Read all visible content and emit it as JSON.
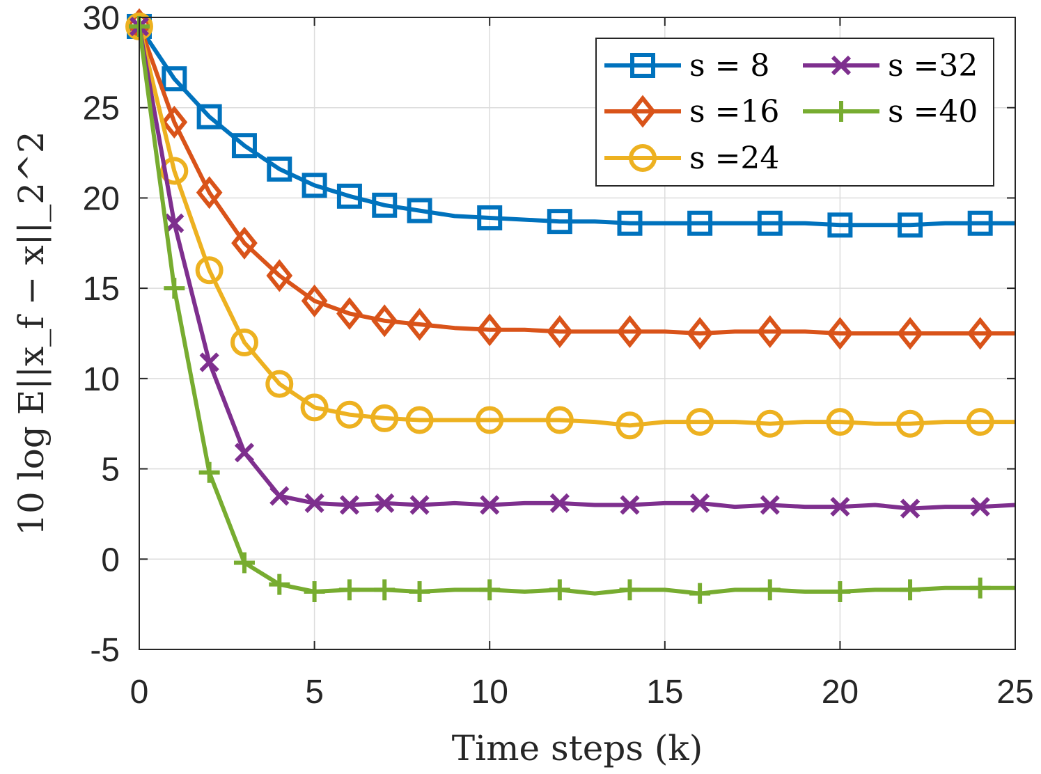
{
  "chart_data": {
    "type": "line",
    "title": "",
    "xlabel": "Time steps (k)",
    "ylabel": "10 log E||x_f − x||_2^2",
    "xlim": [
      0,
      25
    ],
    "ylim": [
      -5,
      30
    ],
    "grid": true,
    "legend_position": "top-right",
    "x_ticks": [
      "0",
      "5",
      "10",
      "15",
      "20",
      "25"
    ],
    "y_ticks": [
      "-5",
      "0",
      "5",
      "10",
      "15",
      "20",
      "25",
      "30"
    ],
    "x": [
      0,
      1,
      2,
      3,
      4,
      5,
      6,
      7,
      8,
      9,
      10,
      11,
      12,
      13,
      14,
      15,
      16,
      17,
      18,
      19,
      20,
      21,
      22,
      23,
      24,
      25
    ],
    "series": [
      {
        "name": "s = 8",
        "legend_label": "s = 8",
        "color": "#0072BD",
        "marker": "square",
        "values": [
          29.5,
          26.6,
          24.5,
          22.9,
          21.6,
          20.7,
          20.1,
          19.6,
          19.3,
          19.0,
          18.9,
          18.8,
          18.7,
          18.7,
          18.6,
          18.6,
          18.6,
          18.6,
          18.6,
          18.6,
          18.5,
          18.5,
          18.5,
          18.6,
          18.6,
          18.6
        ],
        "marker_x": [
          1,
          2,
          3,
          4,
          5,
          6,
          7,
          8,
          10,
          12,
          14,
          16,
          18,
          20,
          22,
          24
        ]
      },
      {
        "name": "s = 16",
        "legend_label": "s =16",
        "color": "#D95319",
        "marker": "diamond",
        "values": [
          29.6,
          24.2,
          20.3,
          17.5,
          15.7,
          14.3,
          13.6,
          13.2,
          13.0,
          12.8,
          12.7,
          12.7,
          12.6,
          12.6,
          12.6,
          12.6,
          12.5,
          12.6,
          12.6,
          12.6,
          12.5,
          12.5,
          12.5,
          12.5,
          12.5,
          12.5
        ],
        "marker_x": [
          1,
          2,
          3,
          4,
          5,
          6,
          7,
          8,
          10,
          12,
          14,
          16,
          18,
          20,
          22,
          24
        ]
      },
      {
        "name": "s = 24",
        "legend_label": "s =24",
        "color": "#EDB120",
        "marker": "circle",
        "values": [
          29.5,
          21.5,
          16.0,
          12.0,
          9.7,
          8.4,
          8.0,
          7.8,
          7.7,
          7.7,
          7.7,
          7.7,
          7.7,
          7.6,
          7.4,
          7.6,
          7.6,
          7.6,
          7.5,
          7.6,
          7.6,
          7.5,
          7.5,
          7.6,
          7.6,
          7.6
        ],
        "marker_x": [
          1,
          2,
          3,
          4,
          5,
          6,
          7,
          8,
          10,
          12,
          14,
          16,
          18,
          20,
          22,
          24
        ]
      },
      {
        "name": "s = 32",
        "legend_label": "s =32",
        "color": "#7E2F8E",
        "marker": "x",
        "values": [
          29.5,
          18.6,
          10.9,
          5.9,
          3.5,
          3.1,
          3.0,
          3.1,
          3.0,
          3.1,
          3.0,
          3.1,
          3.1,
          3.0,
          3.0,
          3.1,
          3.1,
          2.9,
          3.0,
          2.9,
          2.9,
          3.0,
          2.8,
          2.9,
          2.9,
          3.0
        ],
        "marker_x": [
          1,
          2,
          3,
          4,
          5,
          6,
          7,
          8,
          10,
          12,
          14,
          16,
          18,
          20,
          22,
          24
        ]
      },
      {
        "name": "s = 40",
        "legend_label": "s =40",
        "color": "#77AC30",
        "marker": "plus",
        "values": [
          29.5,
          15.0,
          4.8,
          -0.2,
          -1.4,
          -1.8,
          -1.7,
          -1.7,
          -1.8,
          -1.7,
          -1.7,
          -1.8,
          -1.7,
          -1.9,
          -1.7,
          -1.7,
          -1.9,
          -1.7,
          -1.7,
          -1.8,
          -1.8,
          -1.7,
          -1.7,
          -1.6,
          -1.6,
          -1.6
        ],
        "marker_x": [
          1,
          2,
          3,
          4,
          5,
          6,
          7,
          8,
          10,
          12,
          14,
          16,
          18,
          20,
          22,
          24
        ]
      }
    ]
  }
}
